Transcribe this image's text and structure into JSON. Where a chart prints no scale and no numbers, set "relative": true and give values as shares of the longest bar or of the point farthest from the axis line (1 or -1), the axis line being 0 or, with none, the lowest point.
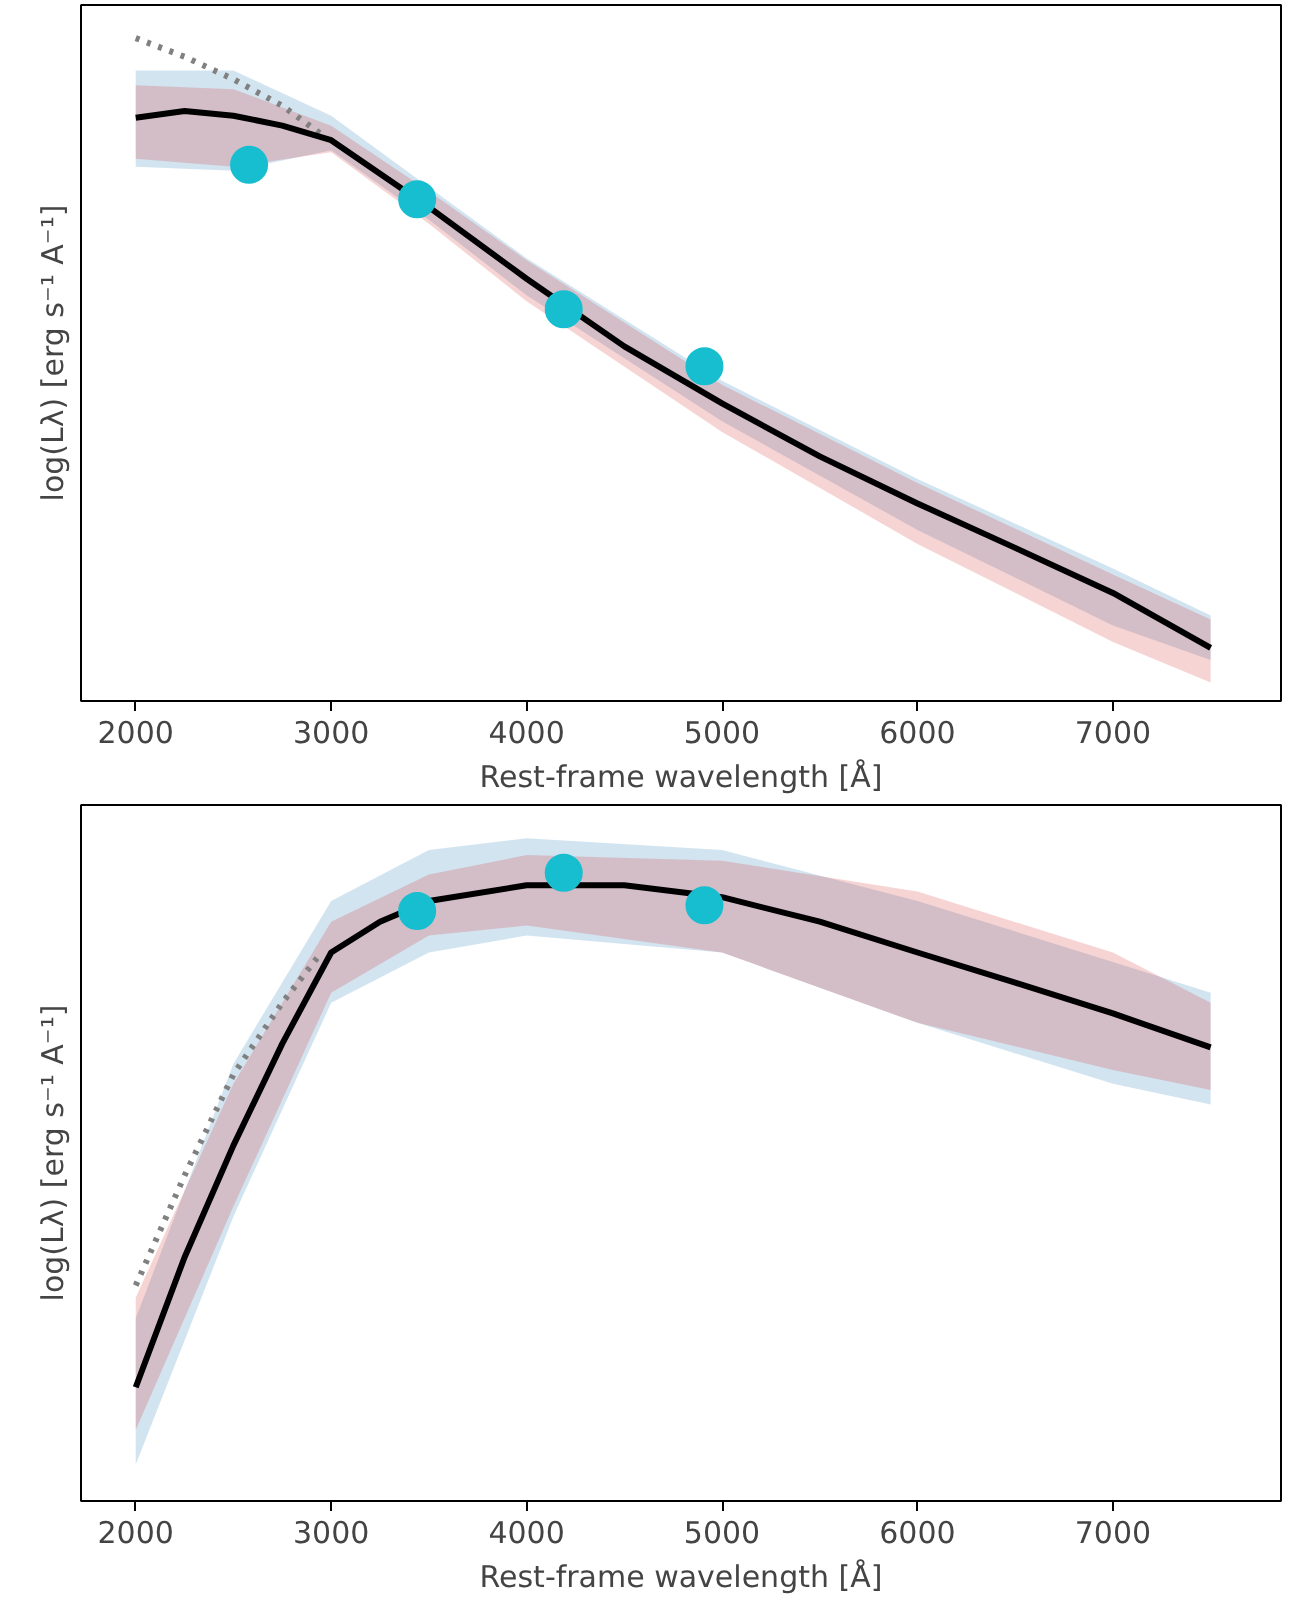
{
  "chart_data": [
    {
      "type": "line",
      "relative": true,
      "xlabel": "Rest-frame wavelength [Å]",
      "ylabel": "log(Lλ) [erg s⁻¹ A⁻¹]",
      "xlim": [
        1720,
        7860
      ],
      "xticks": [
        2000,
        3000,
        4000,
        5000,
        6000,
        7000
      ],
      "grid": false,
      "series": [
        {
          "color": "#1f77b4",
          "x": [
            2000,
            2500,
            3000,
            3500,
            4000,
            5000,
            6000,
            7000,
            7500
          ],
          "values": [
            null,
            null,
            null,
            null,
            null,
            null,
            null,
            null,
            null
          ],
          "lower": [
            0.806,
            0.8,
            0.831,
            0.726,
            0.612,
            0.422,
            0.258,
            0.114,
            0.062
          ],
          "upper": [
            0.951,
            0.951,
            0.883,
            0.775,
            0.668,
            0.483,
            0.335,
            0.2,
            0.129
          ]
        },
        {
          "color": "#d62728",
          "x": [
            2000,
            2500,
            3000,
            3500,
            4000,
            5000,
            6000,
            7000,
            7500
          ],
          "values": [
            null,
            null,
            null,
            null,
            null,
            null,
            null,
            null,
            null
          ],
          "lower": [
            0.818,
            0.806,
            0.828,
            0.72,
            0.603,
            0.406,
            0.237,
            0.089,
            0.028
          ],
          "upper": [
            0.929,
            0.923,
            0.868,
            0.769,
            0.665,
            0.477,
            0.329,
            0.191,
            0.123
          ]
        },
        {
          "color": "#808080",
          "line_style": "dotted",
          "x": [
            2000,
            2250,
            2500,
            2750,
            2950
          ],
          "values": [
            1.0,
            0.972,
            0.938,
            0.898,
            0.855
          ]
        },
        {
          "color": "#000000",
          "line_style": "solid",
          "x": [
            2000,
            2250,
            2500,
            2750,
            3000,
            3500,
            4000,
            4500,
            5000,
            5500,
            6000,
            6500,
            7000,
            7500
          ],
          "values": [
            0.88,
            0.89,
            0.883,
            0.868,
            0.846,
            0.745,
            0.637,
            0.535,
            0.449,
            0.369,
            0.298,
            0.231,
            0.163,
            0.08
          ]
        },
        {
          "type": "scatter",
          "marker": "circle",
          "color": "#17becf",
          "x": [
            2580,
            3440,
            4190,
            4910
          ],
          "values": [
            0.809,
            0.757,
            0.591,
            0.505
          ]
        }
      ]
    },
    {
      "type": "line",
      "relative": true,
      "xlabel": "Rest-frame wavelength [Å]",
      "ylabel": "log(Lλ) [erg s⁻¹ A⁻¹]",
      "xlim": [
        1720,
        7860
      ],
      "xticks": [
        2000,
        3000,
        4000,
        5000,
        6000,
        7000
      ],
      "grid": false,
      "series": [
        {
          "color": "#1f77b4",
          "x": [
            2000,
            2500,
            3000,
            3500,
            4000,
            5000,
            6000,
            7000,
            7500
          ],
          "values": [
            null,
            null,
            null,
            null,
            null,
            null,
            null,
            null,
            null
          ],
          "lower": [
            0.058,
            0.453,
            0.793,
            0.873,
            0.9,
            0.873,
            0.761,
            0.664,
            0.631
          ],
          "upper": [
            0.291,
            0.696,
            0.955,
            1.036,
            1.055,
            1.036,
            0.955,
            0.858,
            0.809
          ]
        },
        {
          "color": "#d62728",
          "x": [
            2000,
            2500,
            3000,
            3500,
            4000,
            5000,
            6000,
            7000,
            7500
          ],
          "values": [
            null,
            null,
            null,
            null,
            null,
            null,
            null,
            null,
            null
          ],
          "lower": [
            0.113,
            0.469,
            0.809,
            0.9,
            0.916,
            0.873,
            0.761,
            0.686,
            0.654
          ],
          "upper": [
            0.324,
            0.664,
            0.922,
            0.997,
            1.028,
            1.019,
            0.97,
            0.873,
            0.793
          ]
        },
        {
          "color": "#808080",
          "line_style": "dotted",
          "x": [
            2000,
            2250,
            2500,
            2750,
            2950
          ],
          "values": [
            0.343,
            0.518,
            0.679,
            0.793,
            0.873
          ]
        },
        {
          "color": "#000000",
          "line_style": "solid",
          "x": [
            2000,
            2250,
            2500,
            2750,
            3000,
            3250,
            3500,
            4000,
            4500,
            5000,
            5500,
            6000,
            6500,
            7000,
            7500
          ],
          "values": [
            0.181,
            0.388,
            0.566,
            0.728,
            0.873,
            0.922,
            0.955,
            0.98,
            0.98,
            0.961,
            0.922,
            0.873,
            0.825,
            0.776,
            0.722
          ]
        },
        {
          "type": "scatter",
          "marker": "circle",
          "color": "#17becf",
          "x": [
            3440,
            4190,
            4910
          ],
          "values": [
            0.939,
            1.0,
            0.948
          ]
        }
      ]
    }
  ]
}
